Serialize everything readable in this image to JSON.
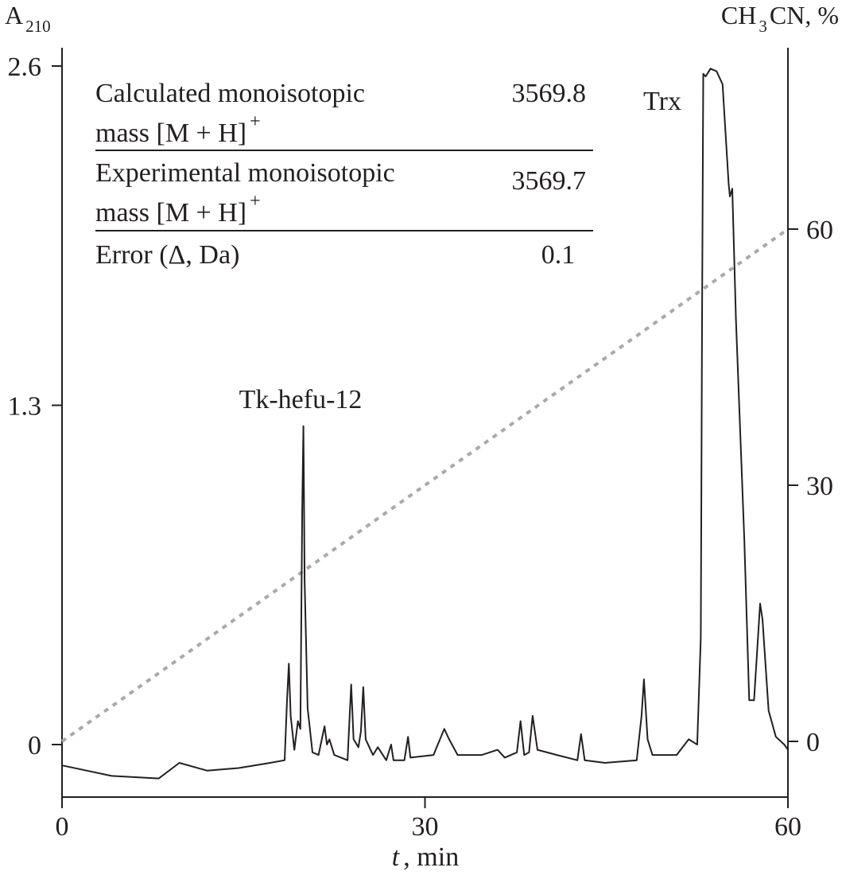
{
  "chart_data": {
    "type": "line",
    "title": "",
    "xlabel_italic": "t",
    "xlabel_rest": ", min",
    "ylabel_left_main": "A",
    "ylabel_left_sub": "210",
    "ylabel_right_main": "CH",
    "ylabel_right_sub": "3",
    "ylabel_right_rest": "CN, %",
    "xlim": [
      0,
      60
    ],
    "ylim_left": [
      -0.21,
      2.6
    ],
    "ylim_right": [
      0,
      60
    ],
    "x_ticks": [
      "0",
      "30",
      "60"
    ],
    "y_left_ticks": [
      "0",
      "1.3",
      "2.6"
    ],
    "y_right_ticks": [
      "0",
      "30",
      "60"
    ],
    "grid": false,
    "series": [
      {
        "style": "solid",
        "color": "#231f20",
        "axis": "left",
        "points": [
          [
            0,
            -0.08
          ],
          [
            4.1,
            -0.12
          ],
          [
            8.0,
            -0.13
          ],
          [
            9.7,
            -0.07
          ],
          [
            12.0,
            -0.1
          ],
          [
            14.6,
            -0.09
          ],
          [
            17.2,
            -0.07
          ],
          [
            18.4,
            -0.06
          ],
          [
            18.6,
            0.17
          ],
          [
            18.75,
            0.31
          ],
          [
            18.9,
            0.11
          ],
          [
            19.2,
            -0.02
          ],
          [
            19.5,
            0.09
          ],
          [
            19.7,
            0.06
          ],
          [
            19.85,
            0.9
          ],
          [
            19.95,
            1.22
          ],
          [
            20.0,
            0.96
          ],
          [
            20.05,
            0.63
          ],
          [
            20.3,
            0.14
          ],
          [
            20.7,
            -0.03
          ],
          [
            21.2,
            -0.04
          ],
          [
            21.7,
            0.07
          ],
          [
            21.9,
            0.0
          ],
          [
            22.1,
            0.02
          ],
          [
            22.5,
            -0.04
          ],
          [
            23.6,
            -0.06
          ],
          [
            23.9,
            0.23
          ],
          [
            24.1,
            0.02
          ],
          [
            24.5,
            -0.01
          ],
          [
            24.7,
            0.05
          ],
          [
            24.9,
            0.22
          ],
          [
            25.1,
            0.02
          ],
          [
            25.7,
            -0.04
          ],
          [
            26.1,
            -0.01
          ],
          [
            26.8,
            -0.06
          ],
          [
            27.2,
            0.0
          ],
          [
            27.4,
            -0.06
          ],
          [
            28.3,
            -0.06
          ],
          [
            28.6,
            0.03
          ],
          [
            28.8,
            -0.05
          ],
          [
            30.7,
            -0.04
          ],
          [
            31.6,
            0.06
          ],
          [
            32.0,
            0.02
          ],
          [
            32.7,
            -0.04
          ],
          [
            34.7,
            -0.04
          ],
          [
            36.0,
            -0.02
          ],
          [
            36.6,
            -0.05
          ],
          [
            37.6,
            -0.03
          ],
          [
            37.9,
            0.09
          ],
          [
            38.2,
            -0.04
          ],
          [
            38.6,
            -0.03
          ],
          [
            38.9,
            0.11
          ],
          [
            39.3,
            -0.02
          ],
          [
            40.9,
            -0.04
          ],
          [
            42.6,
            -0.06
          ],
          [
            42.9,
            0.04
          ],
          [
            43.2,
            -0.06
          ],
          [
            44.9,
            -0.07
          ],
          [
            47.5,
            -0.06
          ],
          [
            47.9,
            0.11
          ],
          [
            48.1,
            0.25
          ],
          [
            48.4,
            0.02
          ],
          [
            48.8,
            -0.04
          ],
          [
            50.8,
            -0.04
          ],
          [
            51.8,
            0.02
          ],
          [
            52.5,
            0.0
          ],
          [
            52.8,
            0.41
          ],
          [
            52.9,
            1.63
          ],
          [
            53.0,
            2.57
          ],
          [
            53.2,
            2.56
          ],
          [
            53.6,
            2.59
          ],
          [
            54.1,
            2.58
          ],
          [
            54.6,
            2.53
          ],
          [
            55.1,
            2.15
          ],
          [
            55.2,
            2.1
          ],
          [
            55.4,
            2.13
          ],
          [
            55.7,
            1.63
          ],
          [
            56.4,
            0.78
          ],
          [
            56.8,
            0.17
          ],
          [
            57.2,
            0.17
          ],
          [
            57.7,
            0.54
          ],
          [
            57.9,
            0.48
          ],
          [
            58.4,
            0.13
          ],
          [
            59.0,
            0.03
          ],
          [
            59.7,
            0.0
          ],
          [
            60,
            -0.02
          ]
        ]
      },
      {
        "style": "dotted",
        "color": "#a7a9ac",
        "axis": "right",
        "points": [
          [
            0,
            0
          ],
          [
            60,
            60
          ]
        ]
      }
    ],
    "annotations": [
      {
        "text": "Tk-hefu-12",
        "x": 19.95
      },
      {
        "text": "Trx",
        "x": 53.6
      }
    ],
    "inset_table": {
      "rows": [
        {
          "label_line1": "Calculated monoisotopic",
          "label_line2": "mass [M + H]",
          "sup": "+",
          "value": "3569.8"
        },
        {
          "label_line1": "Experimental monoisotopic",
          "label_line2": "mass [M + H]",
          "sup": "+",
          "value": "3569.7"
        },
        {
          "label_line1": "Error (Δ, Da)",
          "label_line2": "",
          "sup": "",
          "value": "0.1"
        }
      ]
    }
  }
}
